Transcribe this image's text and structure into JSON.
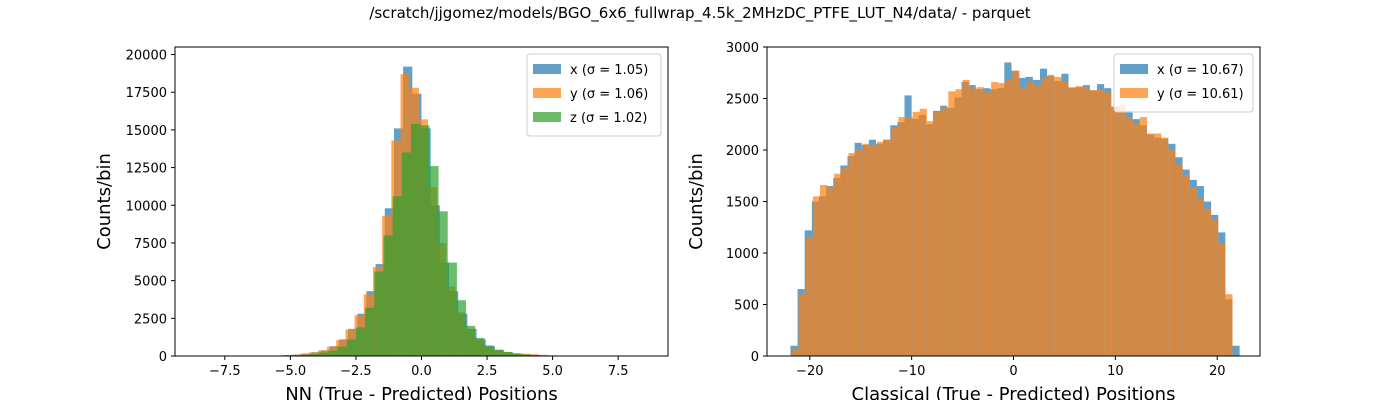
{
  "suptitle": "/scratch/jjgomez/models/BGO_6x6_fullwrap_4.5k_2MHzDC_PTFE_LUT_N4/data/ - parquet",
  "chart_data": [
    {
      "type": "histogram",
      "xlabel": "NN (True - Predicted) Positions",
      "ylabel": "Counts/bin",
      "xlim": [
        -9.4,
        9.4
      ],
      "ylim": [
        0,
        20500
      ],
      "xticks": [
        -7.5,
        -5.0,
        -2.5,
        0.0,
        2.5,
        5.0,
        7.5
      ],
      "xtick_labels": [
        "−7.5",
        "−5.0",
        "−2.5",
        "0.0",
        "2.5",
        "5.0",
        "7.5"
      ],
      "yticks": [
        0,
        2500,
        5000,
        7500,
        10000,
        12500,
        15000,
        17500,
        20000
      ],
      "ytick_labels": [
        "0",
        "2500",
        "5000",
        "7500",
        "10000",
        "12500",
        "15000",
        "17500",
        "20000"
      ],
      "legend_loc": "upper right",
      "series": [
        {
          "name": "x (σ = 1.05)",
          "color": "#1f77b4",
          "edges": [
            -5.6,
            -5.25,
            -4.9,
            -4.55,
            -4.2,
            -3.85,
            -3.5,
            -3.15,
            -2.8,
            -2.45,
            -2.1,
            -1.75,
            -1.4,
            -1.05,
            -0.7,
            -0.35,
            0.0,
            0.35,
            0.7,
            1.05,
            1.4,
            1.75,
            2.1,
            2.45,
            2.8,
            3.15,
            3.5,
            3.85,
            4.2,
            4.55,
            4.9,
            5.25,
            5.6
          ],
          "values": [
            30,
            60,
            100,
            160,
            250,
            380,
            650,
            1100,
            1800,
            2800,
            4300,
            6100,
            9800,
            15100,
            19200,
            17400,
            15100,
            10000,
            6200,
            4300,
            2800,
            1800,
            1100,
            650,
            400,
            250,
            160,
            110,
            70,
            40,
            20,
            10
          ]
        },
        {
          "name": "y (σ = 1.06)",
          "color": "#ff7f0e",
          "edges": [
            -5.7,
            -5.35,
            -5.0,
            -4.65,
            -4.3,
            -3.95,
            -3.6,
            -3.25,
            -2.9,
            -2.55,
            -2.2,
            -1.85,
            -1.5,
            -1.15,
            -0.8,
            -0.45,
            -0.1,
            0.25,
            0.6,
            0.95,
            1.3,
            1.65,
            2.0,
            2.35,
            2.7,
            3.05,
            3.4,
            3.75,
            4.1,
            4.45,
            4.8,
            5.15,
            5.5
          ],
          "values": [
            25,
            50,
            90,
            150,
            240,
            370,
            620,
            1050,
            1750,
            2700,
            4100,
            5900,
            9300,
            14300,
            18700,
            17800,
            15700,
            11200,
            7500,
            4600,
            2900,
            1800,
            1100,
            600,
            400,
            280,
            190,
            150,
            120,
            80,
            40,
            20
          ]
        },
        {
          "name": "z (σ = 1.02)",
          "color": "#2ca02c",
          "edges": [
            -5.3,
            -4.95,
            -4.6,
            -4.25,
            -3.9,
            -3.55,
            -3.2,
            -2.85,
            -2.5,
            -2.15,
            -1.8,
            -1.45,
            -1.1,
            -0.75,
            -0.4,
            -0.05,
            0.3,
            0.65,
            1.0,
            1.35,
            1.7,
            2.05,
            2.4,
            2.75,
            3.1,
            3.45,
            3.8,
            4.15,
            4.5,
            4.85,
            5.2
          ],
          "values": [
            20,
            40,
            80,
            140,
            230,
            360,
            620,
            1100,
            1900,
            3200,
            5600,
            8000,
            10600,
            13500,
            15400,
            15300,
            12600,
            9600,
            6200,
            3700,
            2000,
            1200,
            700,
            420,
            260,
            160,
            100,
            60,
            30,
            15
          ]
        }
      ]
    },
    {
      "type": "histogram",
      "xlabel": "Classical (True - Predicted) Positions",
      "ylabel": "Counts/bin",
      "xlim": [
        -24.2,
        24.2
      ],
      "ylim": [
        0,
        3000
      ],
      "xticks": [
        -20,
        -10,
        0,
        10,
        20
      ],
      "xtick_labels": [
        "−20",
        "−10",
        "0",
        "10",
        "20"
      ],
      "yticks": [
        0,
        500,
        1000,
        1500,
        2000,
        2500,
        3000
      ],
      "ytick_labels": [
        "0",
        "500",
        "1000",
        "1500",
        "2000",
        "2500",
        "3000"
      ],
      "legend_loc": "upper right",
      "series": [
        {
          "name": "x (σ = 10.67)",
          "color": "#1f77b4",
          "edges": [
            -21.9,
            -21.2,
            -20.5,
            -19.8,
            -19.1,
            -18.4,
            -17.7,
            -17.0,
            -16.3,
            -15.6,
            -14.9,
            -14.2,
            -13.5,
            -12.8,
            -12.1,
            -11.4,
            -10.7,
            -10.0,
            -9.3,
            -8.6,
            -7.9,
            -7.2,
            -6.5,
            -5.8,
            -5.1,
            -4.4,
            -3.7,
            -3.0,
            -2.3,
            -1.6,
            -0.9,
            -0.2,
            0.5,
            1.2,
            1.9,
            2.6,
            3.3,
            4.0,
            4.7,
            5.4,
            6.1,
            6.8,
            7.5,
            8.2,
            8.9,
            9.6,
            10.3,
            11.0,
            11.7,
            12.4,
            13.1,
            13.8,
            14.5,
            15.2,
            15.9,
            16.6,
            17.3,
            18.0,
            18.7,
            19.4,
            20.1,
            20.8,
            21.5,
            22.2
          ],
          "values": [
            100,
            650,
            1220,
            1500,
            1550,
            1650,
            1730,
            1850,
            1940,
            2070,
            2050,
            2100,
            2060,
            2100,
            2240,
            2270,
            2530,
            2300,
            2340,
            2250,
            2380,
            2430,
            2410,
            2510,
            2660,
            2630,
            2590,
            2600,
            2590,
            2600,
            2850,
            2770,
            2700,
            2710,
            2680,
            2790,
            2720,
            2670,
            2740,
            2600,
            2610,
            2630,
            2580,
            2640,
            2600,
            2420,
            2380,
            2380,
            2300,
            2240,
            2150,
            2120,
            2110,
            2060,
            1930,
            1810,
            1710,
            1650,
            1500,
            1370,
            1200,
            550,
            100
          ]
        },
        {
          "name": "y (σ = 10.61)",
          "color": "#ff7f0e",
          "edges": [
            -21.8,
            -21.1,
            -20.4,
            -19.7,
            -19.0,
            -18.3,
            -17.6,
            -16.9,
            -16.2,
            -15.5,
            -14.8,
            -14.1,
            -13.4,
            -12.7,
            -12.0,
            -11.3,
            -10.6,
            -9.9,
            -9.2,
            -8.5,
            -7.8,
            -7.1,
            -6.4,
            -5.7,
            -5.0,
            -4.3,
            -3.6,
            -2.9,
            -2.2,
            -1.5,
            -0.8,
            -0.1,
            0.6,
            1.3,
            2.0,
            2.7,
            3.4,
            4.0,
            4.7,
            5.4,
            6.1,
            6.8,
            7.5,
            8.2,
            8.9,
            9.6,
            10.3,
            11.0,
            11.7,
            12.4,
            13.1,
            13.8,
            14.5,
            15.2,
            15.9,
            16.6,
            17.3,
            18.0,
            18.7,
            19.4,
            20.1,
            20.8,
            21.5
          ],
          "values": [
            70,
            600,
            1150,
            1550,
            1660,
            1640,
            1770,
            1830,
            1970,
            2010,
            2060,
            2050,
            2080,
            2100,
            2220,
            2320,
            2320,
            2370,
            2400,
            2280,
            2370,
            2410,
            2570,
            2590,
            2680,
            2600,
            2610,
            2560,
            2660,
            2650,
            2680,
            2770,
            2600,
            2660,
            2630,
            2700,
            2730,
            2710,
            2670,
            2610,
            2620,
            2610,
            2580,
            2590,
            2560,
            2420,
            2430,
            2320,
            2260,
            2320,
            2160,
            2160,
            2120,
            2000,
            1860,
            1760,
            1640,
            1530,
            1430,
            1330,
            1100,
            600
          ]
        }
      ]
    }
  ]
}
